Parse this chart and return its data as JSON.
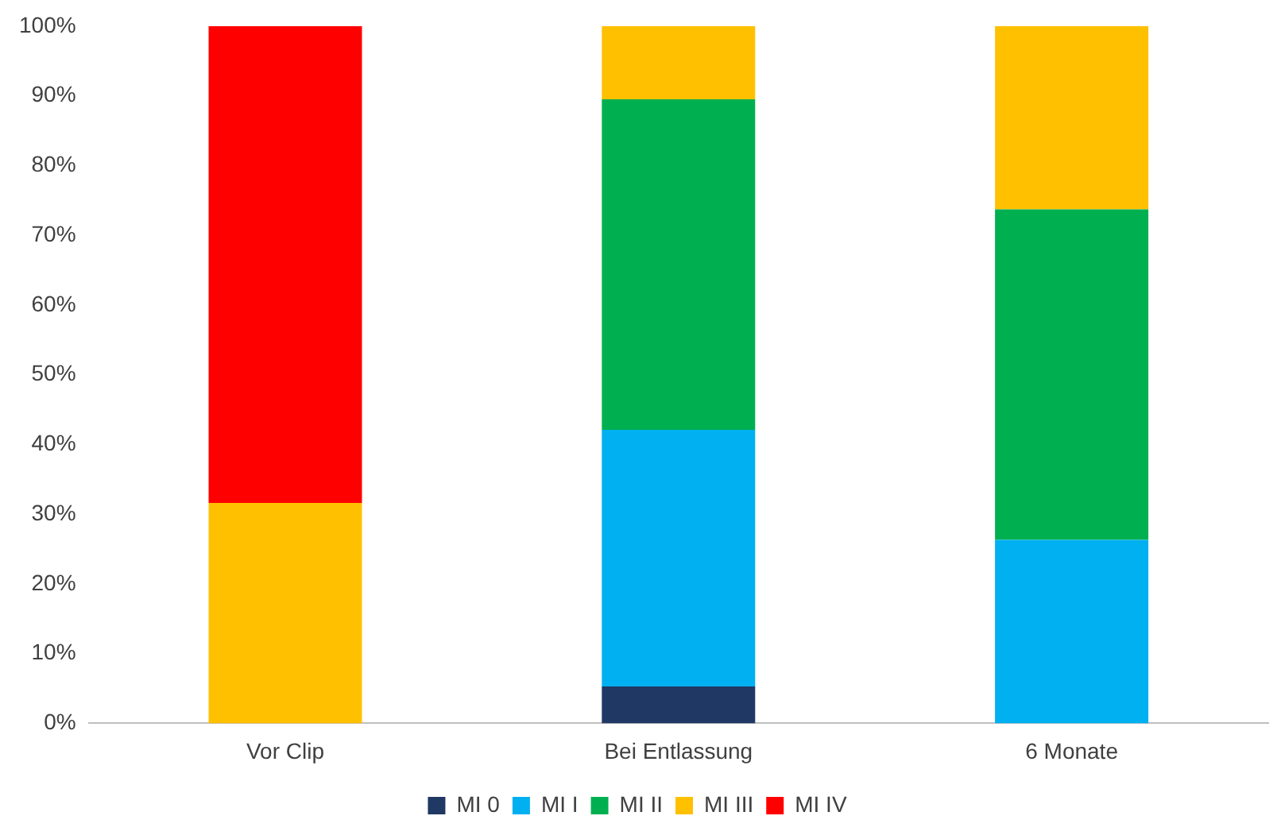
{
  "chart_data": {
    "type": "bar",
    "stacked": true,
    "categories": [
      "Vor Clip",
      "Bei Entlassung",
      "6 Monate"
    ],
    "series": [
      {
        "name": "MI 0",
        "color": "#203864",
        "values": [
          null,
          5.3,
          null
        ]
      },
      {
        "name": "MI I",
        "color": "#00b0f0",
        "values": [
          null,
          36.8,
          26.3
        ]
      },
      {
        "name": "MI II",
        "color": "#00b050",
        "values": [
          null,
          47.4,
          47.4
        ]
      },
      {
        "name": "MI III",
        "color": "#ffc000",
        "values": [
          31.6,
          10.5,
          26.3
        ]
      },
      {
        "name": "MI IV",
        "color": "#ff0000",
        "values": [
          68.4,
          null,
          null
        ]
      }
    ],
    "ylim": [
      0,
      100
    ],
    "yticks": [
      {
        "value": 0,
        "label": "0%"
      },
      {
        "value": 10,
        "label": "10%"
      },
      {
        "value": 20,
        "label": "20%"
      },
      {
        "value": 30,
        "label": "30%"
      },
      {
        "value": 40,
        "label": "40%"
      },
      {
        "value": 50,
        "label": "50%"
      },
      {
        "value": 60,
        "label": "60%"
      },
      {
        "value": 70,
        "label": "70%"
      },
      {
        "value": 80,
        "label": "80%"
      },
      {
        "value": 90,
        "label": "90%"
      },
      {
        "value": 100,
        "label": "100%"
      }
    ],
    "grid": false,
    "legend": "bottom"
  }
}
